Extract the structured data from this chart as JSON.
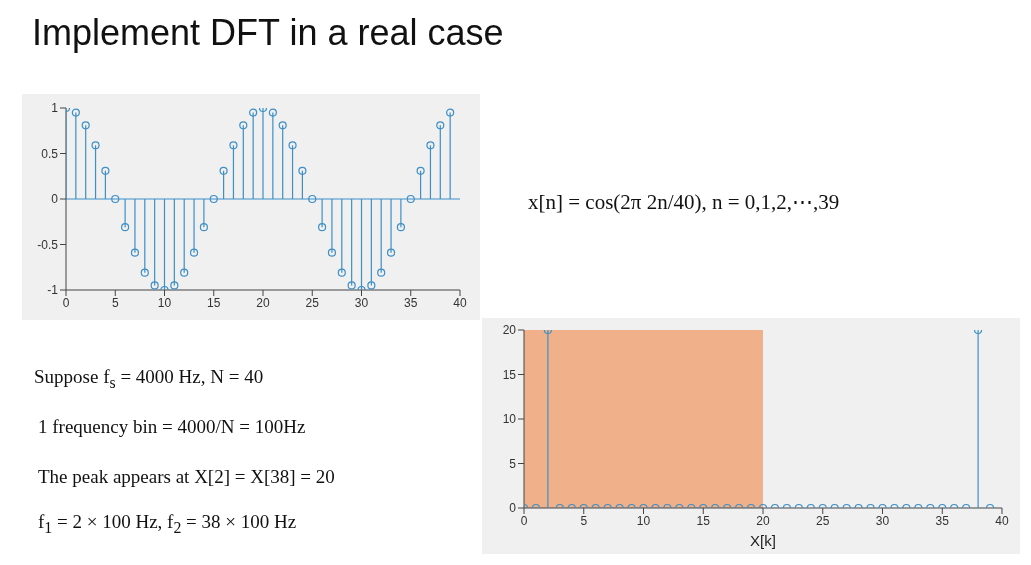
{
  "chart_data": [
    {
      "type": "lollipop",
      "title": "Implement DFT in a real case",
      "x": [
        0,
        1,
        2,
        3,
        4,
        5,
        6,
        7,
        8,
        9,
        10,
        11,
        12,
        13,
        14,
        15,
        16,
        17,
        18,
        19,
        20,
        21,
        22,
        23,
        24,
        25,
        26,
        27,
        28,
        29,
        30,
        31,
        32,
        33,
        34,
        35,
        36,
        37,
        38,
        39
      ],
      "values": [
        1,
        0.95,
        0.81,
        0.59,
        0.31,
        0,
        -0.31,
        -0.59,
        -0.81,
        -0.95,
        -1,
        -0.95,
        -0.81,
        -0.59,
        -0.31,
        0,
        0.31,
        0.59,
        0.81,
        0.95,
        1,
        0.95,
        0.81,
        0.59,
        0.31,
        0,
        -0.31,
        -0.59,
        -0.81,
        -0.95,
        -1,
        -0.95,
        -0.81,
        -0.59,
        -0.31,
        0,
        0.31,
        0.59,
        0.81,
        0.95
      ],
      "color": "#3d8fc6",
      "marker": "circle",
      "xlim": [
        0,
        40
      ],
      "xticks": [
        0,
        5,
        10,
        15,
        20,
        25,
        30,
        35,
        40
      ],
      "ylim": [
        -1,
        1
      ],
      "yticks": [
        -1,
        -0.5,
        0,
        0.5,
        1
      ],
      "ref_lines": [
        {
          "axis": "y",
          "value": 0,
          "color": "#3d8fc6"
        }
      ],
      "annotations": [
        "x[n] = cos(2π 2n/40),   n = 0,1,2,⋯,39",
        "Suppose f$_{s}$ = 4000 Hz,  N = 40",
        "1 frequency bin = 4000/N = 100Hz",
        "The peak appears at X[2] = X[38] = 20",
        "f$_{1}$ = 2 × 100 Hz,    f$_{2}$ = 38 × 100 Hz"
      ]
    },
    {
      "type": "lollipop",
      "xlabel": "X[k]",
      "x": [
        0,
        1,
        2,
        3,
        4,
        5,
        6,
        7,
        8,
        9,
        10,
        11,
        12,
        13,
        14,
        15,
        16,
        17,
        18,
        19,
        20,
        21,
        22,
        23,
        24,
        25,
        26,
        27,
        28,
        29,
        30,
        31,
        32,
        33,
        34,
        35,
        36,
        37,
        38,
        39
      ],
      "values": [
        0,
        0,
        20,
        0,
        0,
        0,
        0,
        0,
        0,
        0,
        0,
        0,
        0,
        0,
        0,
        0,
        0,
        0,
        0,
        0,
        0,
        0,
        0,
        0,
        0,
        0,
        0,
        0,
        0,
        0,
        0,
        0,
        0,
        0,
        0,
        0,
        0,
        0,
        20,
        0
      ],
      "color": "#3d8fc6",
      "marker": "circle",
      "xlim": [
        0,
        40
      ],
      "xticks": [
        0,
        5,
        10,
        15,
        20,
        25,
        30,
        35,
        40
      ],
      "ylim": [
        0,
        20
      ],
      "yticks": [
        0,
        5,
        10,
        15,
        20
      ],
      "bands": [
        {
          "axis": "x",
          "from": 0,
          "to": 20,
          "color": "#f0a070"
        }
      ]
    }
  ]
}
